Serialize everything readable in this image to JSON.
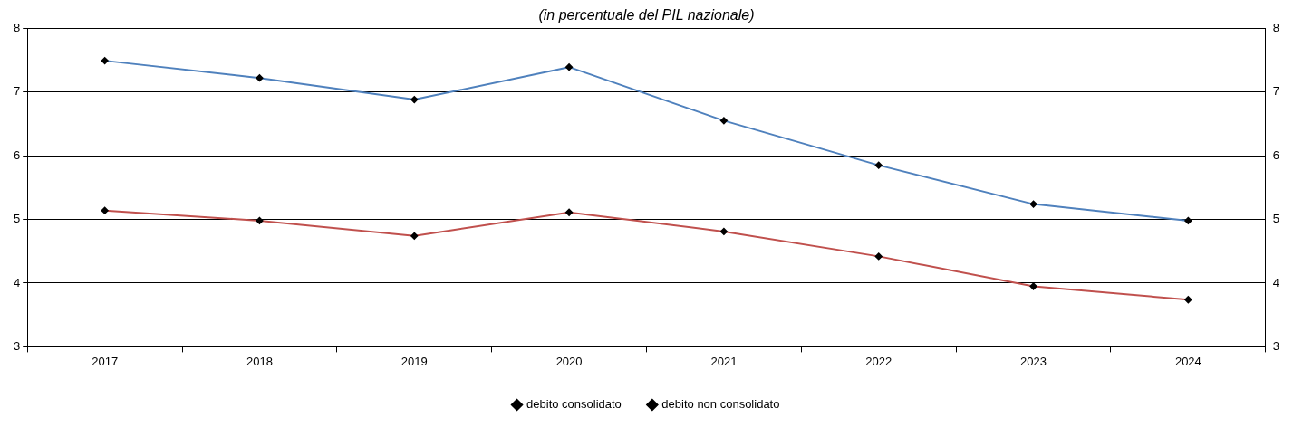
{
  "chart_data": {
    "type": "line",
    "subtitle": "(in percentuale del PIL nazionale)",
    "categories": [
      "2017",
      "2018",
      "2019",
      "2020",
      "2021",
      "2022",
      "2023",
      "2024"
    ],
    "series": [
      {
        "name": "debito consolidato",
        "color": "#c0504d",
        "values": [
          5.14,
          4.98,
          4.74,
          5.11,
          4.81,
          4.42,
          3.95,
          3.74
        ]
      },
      {
        "name": "debito non consolidato",
        "color": "#4f81bd",
        "values": [
          7.49,
          7.22,
          6.88,
          7.39,
          6.55,
          5.85,
          5.24,
          4.98
        ]
      }
    ],
    "ylim": [
      3,
      8
    ],
    "yticks": [
      3,
      4,
      5,
      6,
      7,
      8
    ],
    "y2lim": [
      3,
      8
    ],
    "y2ticks": [
      3,
      4,
      5,
      6,
      7,
      8
    ],
    "grid": "y",
    "legend": "bottom",
    "marker": "diamond",
    "line_style": "solid"
  }
}
